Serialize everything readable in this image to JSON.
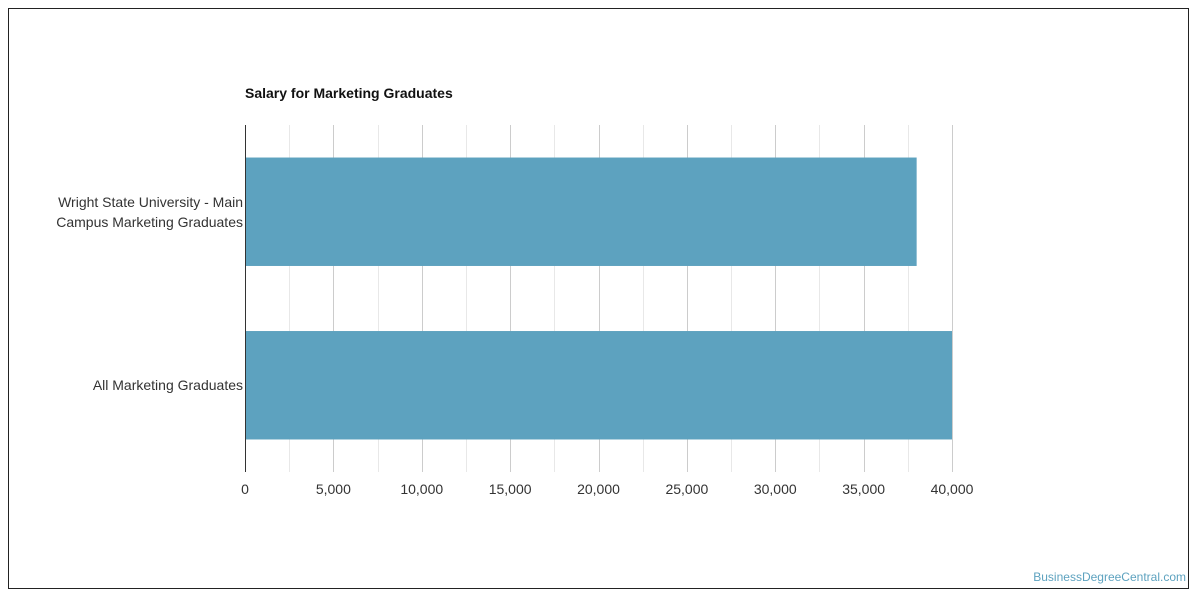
{
  "chart_data": {
    "type": "bar",
    "orientation": "horizontal",
    "title": "Salary for Marketing Graduates",
    "categories": [
      [
        "Wright State University - Main",
        "Campus Marketing Graduates"
      ],
      [
        "All Marketing Graduates"
      ]
    ],
    "values": [
      38000,
      40000
    ],
    "xlim": [
      0,
      40000
    ],
    "xticks": [
      0,
      5000,
      10000,
      15000,
      20000,
      25000,
      30000,
      35000,
      40000
    ],
    "xtick_labels": [
      "0",
      "5,000",
      "10,000",
      "15,000",
      "20,000",
      "25,000",
      "30,000",
      "35,000",
      "40,000"
    ],
    "grid": true,
    "legend": "none",
    "bar_color": "#5da2bf"
  },
  "watermark": "BusinessDegreeCentral.com"
}
